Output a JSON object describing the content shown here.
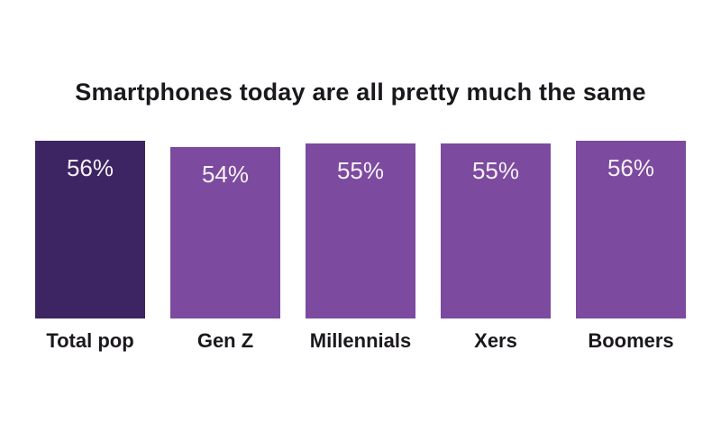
{
  "colors": {
    "background": "#ffffff",
    "title_text": "#1b181d",
    "category_label_text": "#1b181d",
    "value_label_text": "#f6f1f8",
    "bar_highlight": "#3d2462",
    "bar_default": "#7c4a9e"
  },
  "chart_data": {
    "type": "bar",
    "title": "Smartphones today are all pretty much the same",
    "categories": [
      "Total pop",
      "Gen Z",
      "Millennials",
      "Xers",
      "Boomers"
    ],
    "values": [
      56,
      54,
      55,
      55,
      56
    ],
    "value_labels": [
      "56%",
      "54%",
      "55%",
      "55%",
      "56%"
    ],
    "ylim": [
      0,
      100
    ],
    "grid": false,
    "legend": "none",
    "value_label_position": "inside-top",
    "highlighted_category": "Total pop",
    "bar_colors": [
      "#3d2462",
      "#7c4a9e",
      "#7c4a9e",
      "#7c4a9e",
      "#7c4a9e"
    ]
  }
}
